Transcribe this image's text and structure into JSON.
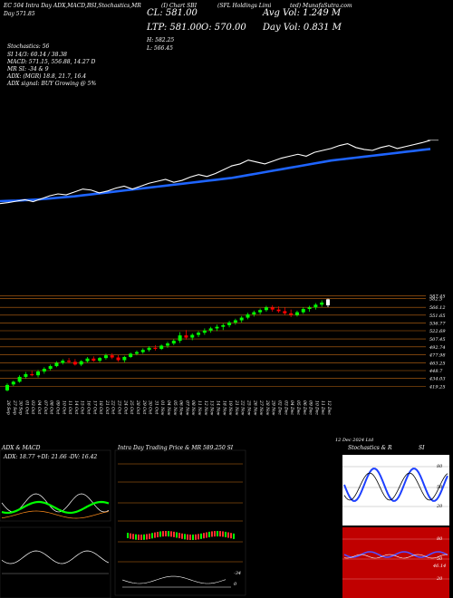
{
  "header": {
    "top_left": "EC 504 Intra Day ADX,MACD,B",
    "top_mid_a": "SI,Stochastics,MR",
    "top_mid_b": "(I) Chart SBI",
    "top_mid_c": "(SFL Holdings Limi",
    "top_right": "ted) MunafaSutra.com",
    "ticker_line": "CL: 581.00",
    "ltp_line": "LTP: 581.00",
    "open_line": "O: 570.00",
    "high_line": "H: 582.25",
    "low_line": "L: 566.45",
    "avg_vol": "Avg Vol: 1.249 M",
    "day_vol": "Day Vol: 0.831 M",
    "day_change": "Day  571.85",
    "stochastics": "Stochastics: 56",
    "si_line": "SI 14/3: 60.14  / 38.38",
    "macd_line": "MACD: 571.15,  556.88,  14.27 D",
    "mr_line": "MR              SI: -34  &  9",
    "adx_line": "ADX:                    (MGR) 18.8,  21.7,  16.4",
    "adx_signal": "ADX  signal:                               BUY Growing @ 5%"
  },
  "panels": {
    "adx_title": "ADX: 18.77  +DI: 21.66  -DV: 16.42",
    "adx_and_macd": "ADX  & MACD",
    "intraday_title": "Intra  Day Trading Price  & MR   589.250  SI",
    "stoch_title": "Stochastics & R",
    "stoch_title2": "SI",
    "stoch_levels": [
      "80",
      "50",
      "20"
    ],
    "rsi_levels": [
      "80",
      "50",
      "20"
    ],
    "rsi_value": "46.14",
    "mr_value": "-34",
    "mr_zero": "0",
    "date_footer": "12 Dec 2024  Ltd"
  },
  "colors": {
    "up": "#00ff00",
    "down": "#ff0000",
    "ema": "#1e64ff",
    "price_line": "#ffffff",
    "grid": "#ff8c1a",
    "stoch_bg": "#ffffff",
    "rsi_bg": "#c00000",
    "macd_line": "#00ff00"
  },
  "chart_data": {
    "type": "candlestick",
    "dates": [
      "26 Sep",
      "27 Sep",
      "30 Sep",
      "01 Oct",
      "03 Oct",
      "04 Oct",
      "07 Oct",
      "08 Oct",
      "09 Oct",
      "10 Oct",
      "11 Oct",
      "14 Oct",
      "15 Oct",
      "16 Oct",
      "17 Oct",
      "18 Oct",
      "21 Oct",
      "22 Oct",
      "23 Oct",
      "24 Oct",
      "25 Oct",
      "28 Oct",
      "29 Oct",
      "30 Oct",
      "31 Oct",
      "01 Nov",
      "04 Nov",
      "05 Nov",
      "06 Nov",
      "07 Nov",
      "08 Nov",
      "11 Nov",
      "12 Nov",
      "13 Nov",
      "14 Nov",
      "18 Nov",
      "19 Nov",
      "21 Nov",
      "22 Nov",
      "25 Nov",
      "26 Nov",
      "27 Nov",
      "28 Nov",
      "29 Nov",
      "02 Dec",
      "03 Dec",
      "04 Dec",
      "05 Dec",
      "06 Dec",
      "09 Dec",
      "10 Dec",
      "11 Dec",
      "12 Dec"
    ],
    "price_ticks": [
      587.45,
      582.5,
      566.12,
      551.65,
      536.77,
      522.69,
      507.45,
      492.74,
      477.98,
      463.25,
      448.7,
      434.03,
      419.25
    ],
    "ylim": [
      410,
      590
    ],
    "ohlc": [
      [
        412,
        425,
        410,
        422
      ],
      [
        423,
        430,
        420,
        428
      ],
      [
        428,
        440,
        426,
        437
      ],
      [
        437,
        446,
        434,
        442
      ],
      [
        442,
        448,
        438,
        440
      ],
      [
        440,
        450,
        436,
        447
      ],
      [
        447,
        455,
        443,
        452
      ],
      [
        452,
        460,
        449,
        457
      ],
      [
        457,
        466,
        455,
        463
      ],
      [
        463,
        470,
        460,
        467
      ],
      [
        467,
        472,
        462,
        465
      ],
      [
        465,
        470,
        458,
        460
      ],
      [
        460,
        468,
        457,
        466
      ],
      [
        466,
        474,
        463,
        471
      ],
      [
        471,
        475,
        465,
        467
      ],
      [
        467,
        474,
        464,
        472
      ],
      [
        472,
        480,
        469,
        477
      ],
      [
        477,
        481,
        470,
        473
      ],
      [
        473,
        478,
        465,
        468
      ],
      [
        468,
        476,
        464,
        474
      ],
      [
        474,
        482,
        472,
        480
      ],
      [
        480,
        486,
        477,
        483
      ],
      [
        483,
        490,
        480,
        487
      ],
      [
        487,
        494,
        484,
        491
      ],
      [
        491,
        496,
        486,
        489
      ],
      [
        489,
        497,
        487,
        495
      ],
      [
        495,
        502,
        491,
        499
      ],
      [
        499,
        507,
        496,
        504
      ],
      [
        504,
        520,
        500,
        514
      ],
      [
        514,
        524,
        506,
        510
      ],
      [
        510,
        518,
        505,
        515
      ],
      [
        515,
        522,
        511,
        519
      ],
      [
        519,
        527,
        515,
        523
      ],
      [
        523,
        530,
        519,
        527
      ],
      [
        527,
        534,
        522,
        530
      ],
      [
        530,
        536,
        524,
        533
      ],
      [
        533,
        541,
        529,
        538
      ],
      [
        538,
        545,
        534,
        542
      ],
      [
        542,
        550,
        538,
        547
      ],
      [
        547,
        556,
        544,
        553
      ],
      [
        553,
        560,
        549,
        557
      ],
      [
        557,
        564,
        553,
        561
      ],
      [
        561,
        569,
        558,
        566
      ],
      [
        566,
        570,
        558,
        562
      ],
      [
        562,
        568,
        556,
        559
      ],
      [
        559,
        566,
        552,
        555
      ],
      [
        555,
        562,
        548,
        552
      ],
      [
        552,
        560,
        549,
        557
      ],
      [
        557,
        566,
        554,
        563
      ],
      [
        563,
        569,
        558,
        566
      ],
      [
        566,
        574,
        562,
        571
      ],
      [
        571,
        579,
        567,
        575
      ],
      [
        570,
        582.25,
        566.45,
        581
      ]
    ],
    "ema_series": [
      455,
      455.5,
      456,
      457,
      458,
      459,
      460.5,
      462,
      463.5,
      465,
      467,
      469,
      471,
      473,
      475,
      477,
      479,
      481,
      483,
      485,
      487,
      489,
      491,
      493,
      495,
      497,
      499,
      501,
      503,
      506,
      509,
      512,
      515,
      518,
      521,
      524,
      527,
      530,
      533,
      536,
      539,
      541,
      543,
      545,
      547,
      549,
      551,
      553,
      555,
      557,
      559,
      561,
      563
    ],
    "price_series": [
      450,
      452,
      455,
      458,
      454,
      460,
      466,
      470,
      468,
      474,
      480,
      478,
      472,
      476,
      482,
      486,
      480,
      486,
      492,
      496,
      500,
      494,
      498,
      505,
      510,
      506,
      512,
      520,
      528,
      532,
      540,
      536,
      532,
      538,
      544,
      548,
      552,
      548,
      556,
      560,
      564,
      570,
      574,
      566,
      562,
      560,
      566,
      570,
      564,
      568,
      572,
      576,
      581
    ]
  }
}
